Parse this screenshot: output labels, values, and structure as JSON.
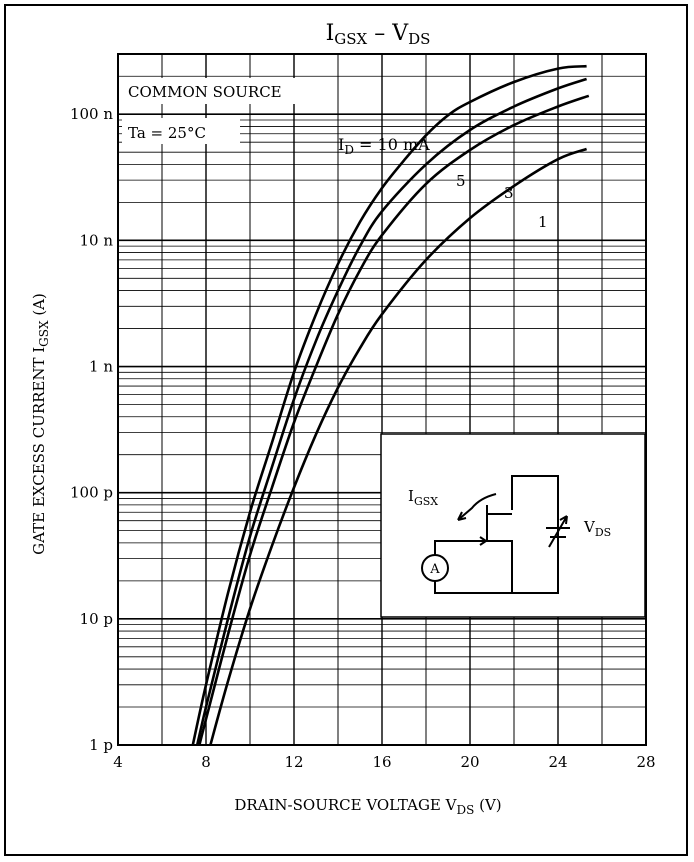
{
  "chart_data": {
    "type": "line",
    "title": "I",
    "title_sub": "GSX",
    "title_sep": " – V",
    "title_sub2": "DS",
    "xlabel": "DRAIN-SOURCE VOLTAGE  V",
    "xlabel_sub": "DS",
    "xlabel_unit": "  (V)",
    "ylabel": "GATE EXCESS CURRENT  I",
    "ylabel_sub": "GSX",
    "ylabel_unit": "  (A)",
    "x_scale": "linear",
    "y_scale": "log",
    "xlim": [
      4,
      28
    ],
    "ylim": [
      1e-12,
      3e-07
    ],
    "x_ticks": [
      {
        "v": 4,
        "label": "4"
      },
      {
        "v": 8,
        "label": "8"
      },
      {
        "v": 12,
        "label": "12"
      },
      {
        "v": 16,
        "label": "16"
      },
      {
        "v": 20,
        "label": "20"
      },
      {
        "v": 24,
        "label": "24"
      },
      {
        "v": 28,
        "label": "28"
      }
    ],
    "y_ticks": [
      {
        "v": 1e-12,
        "label": "1 p"
      },
      {
        "v": 1e-11,
        "label": "10 p"
      },
      {
        "v": 1e-10,
        "label": "100 p"
      },
      {
        "v": 1e-09,
        "label": "1 n"
      },
      {
        "v": 1e-08,
        "label": "10 n"
      },
      {
        "v": 1e-07,
        "label": "100 n"
      }
    ],
    "grid": true,
    "annotations": {
      "condition1": "COMMON SOURCE",
      "condition2": "Ta = 25°C",
      "param_label": "I",
      "param_sub": "D",
      "param_value": " = 10 mA"
    },
    "series": [
      {
        "name": "10",
        "label_text": "",
        "points": [
          [
            7.4,
            1e-12
          ],
          [
            8,
            3e-12
          ],
          [
            9,
            1.6e-11
          ],
          [
            10,
            7e-11
          ],
          [
            11,
            2.5e-10
          ],
          [
            12,
            9e-10
          ],
          [
            13,
            2.6e-09
          ],
          [
            14,
            6.5e-09
          ],
          [
            15,
            1.4e-08
          ],
          [
            16,
            2.6e-08
          ],
          [
            17,
            4.3e-08
          ],
          [
            18,
            6.8e-08
          ],
          [
            19,
            9.8e-08
          ],
          [
            20,
            1.25e-07
          ],
          [
            22,
            1.8e-07
          ],
          [
            24,
            2.3e-07
          ],
          [
            25.3,
            2.4e-07
          ]
        ]
      },
      {
        "name": "5",
        "label_text": "5",
        "points": [
          [
            7.6,
            1e-12
          ],
          [
            8,
            2e-12
          ],
          [
            9,
            1e-11
          ],
          [
            10,
            4.5e-11
          ],
          [
            11,
            1.6e-10
          ],
          [
            12,
            5.5e-10
          ],
          [
            13,
            1.6e-09
          ],
          [
            14,
            4e-09
          ],
          [
            15,
            9e-09
          ],
          [
            16,
            1.7e-08
          ],
          [
            18,
            4e-08
          ],
          [
            20,
            7.5e-08
          ],
          [
            22,
            1.15e-07
          ],
          [
            24,
            1.6e-07
          ],
          [
            25.3,
            1.9e-07
          ]
        ]
      },
      {
        "name": "3",
        "label_text": "3",
        "points": [
          [
            7.7,
            1e-12
          ],
          [
            8,
            1.6e-12
          ],
          [
            9,
            7.5e-12
          ],
          [
            10,
            3.2e-11
          ],
          [
            11,
            1.1e-10
          ],
          [
            12,
            3.6e-10
          ],
          [
            13,
            1e-09
          ],
          [
            14,
            2.6e-09
          ],
          [
            15,
            5.8e-09
          ],
          [
            16,
            1.1e-08
          ],
          [
            18,
            2.8e-08
          ],
          [
            20,
            5.2e-08
          ],
          [
            22,
            8.2e-08
          ],
          [
            24,
            1.15e-07
          ],
          [
            25.4,
            1.4e-07
          ]
        ]
      },
      {
        "name": "1",
        "label_text": "1",
        "points": [
          [
            8.2,
            1e-12
          ],
          [
            9,
            3.2e-12
          ],
          [
            10,
            1.2e-11
          ],
          [
            11,
            3.8e-11
          ],
          [
            12,
            1.1e-10
          ],
          [
            13,
            2.9e-10
          ],
          [
            14,
            6.8e-10
          ],
          [
            15,
            1.4e-09
          ],
          [
            16,
            2.6e-09
          ],
          [
            18,
            7e-09
          ],
          [
            20,
            1.5e-08
          ],
          [
            22,
            2.7e-08
          ],
          [
            24,
            4.4e-08
          ],
          [
            25.3,
            5.3e-08
          ]
        ]
      }
    ],
    "inset": {
      "current_label": "I",
      "current_sub": "GSX",
      "voltage_label": "V",
      "voltage_sub": "DS",
      "meter_label": "A"
    }
  }
}
